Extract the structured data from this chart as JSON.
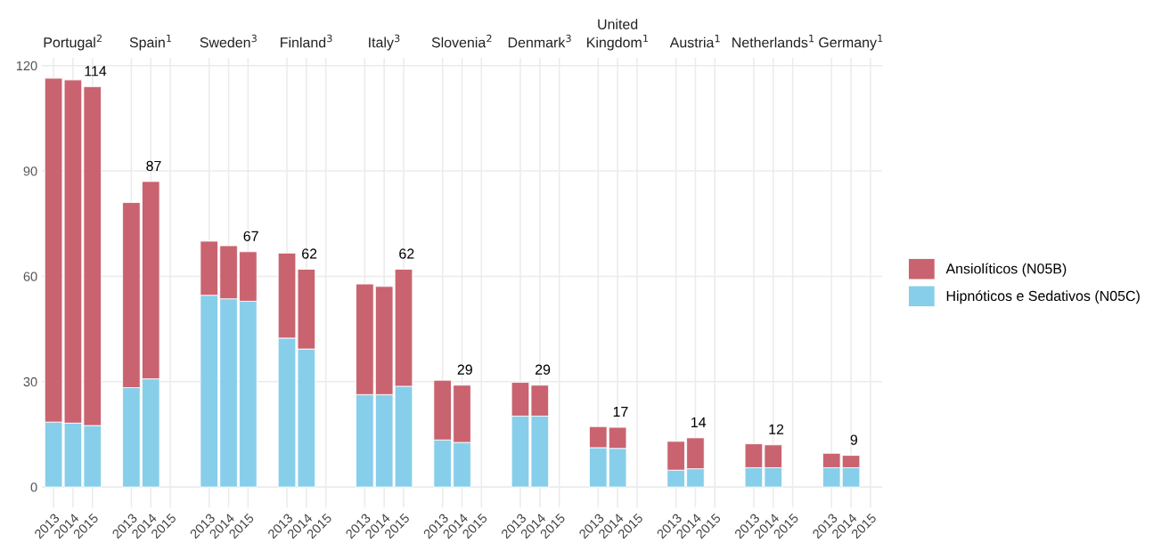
{
  "chart_data": {
    "type": "bar",
    "stacked": true,
    "ylim": [
      -5.8,
      122.2
    ],
    "yticks": [
      0,
      30,
      60,
      90,
      120
    ],
    "grid": true,
    "legend": "right",
    "categories": [
      "2013",
      "2014",
      "2015",
      null,
      "2013",
      "2014",
      "2015",
      null,
      "2013",
      "2014",
      "2015",
      null,
      "2013",
      "2014",
      "2015",
      null,
      "2013",
      "2014",
      "2015",
      null,
      "2013",
      "2014",
      "2015",
      null,
      "2013",
      "2014",
      "2015",
      null,
      "2013",
      "2014",
      "2015",
      null,
      "2013",
      "2014",
      "2015",
      null,
      "2013",
      "2014",
      "2015",
      null,
      "2013",
      "2014",
      "2015"
    ],
    "annotations": [
      "Portugal$^{2}$",
      "Spain$^{1}$",
      "Sweden$^{3}$",
      "Finland$^{3}$",
      "Italy$^{3}$",
      "Slovenia$^{2}$",
      "Denmark$^{3}$",
      "United\nKingdom$^{1}$",
      "Austria$^{1}$",
      "Netherlands$^{1}$",
      "Germany$^{1}$"
    ],
    "totals": [
      null,
      null,
      "114",
      null,
      null,
      "87",
      null,
      null,
      null,
      null,
      "67",
      null,
      null,
      "62",
      null,
      null,
      null,
      null,
      "62",
      null,
      null,
      "29",
      null,
      null,
      null,
      "29",
      null,
      null,
      null,
      "17",
      null,
      null,
      null,
      "14",
      null,
      null,
      null,
      "12",
      null,
      null,
      null,
      "9",
      null
    ],
    "series": [
      {
        "name": "Hipnóticos e Sedativos (N05C)",
        "color": "#87ceeb",
        "values": [
          18.5,
          18.2,
          17.5,
          null,
          28.3,
          30.8,
          null,
          null,
          54.6,
          53.6,
          52.9,
          null,
          42.4,
          39.3,
          null,
          null,
          26.3,
          26.3,
          28.7,
          null,
          13.4,
          12.7,
          null,
          null,
          20.2,
          20.2,
          null,
          null,
          11.2,
          11.0,
          null,
          null,
          4.8,
          5.2,
          null,
          null,
          5.5,
          5.5,
          null,
          null,
          5.5,
          5.5,
          null
        ]
      },
      {
        "name": "Ansiolíticos (N05B)",
        "color": "#c9636f",
        "values": [
          97.9,
          97.7,
          96.5,
          null,
          52.7,
          56.2,
          null,
          null,
          15.4,
          15.1,
          14.1,
          null,
          24.2,
          22.7,
          null,
          null,
          31.5,
          30.8,
          33.3,
          null,
          17.0,
          16.3,
          null,
          null,
          9.6,
          8.8,
          null,
          null,
          6.0,
          6.0,
          null,
          null,
          8.2,
          8.8,
          null,
          null,
          6.8,
          6.5,
          null,
          null,
          4.1,
          3.5,
          null
        ]
      }
    ]
  }
}
